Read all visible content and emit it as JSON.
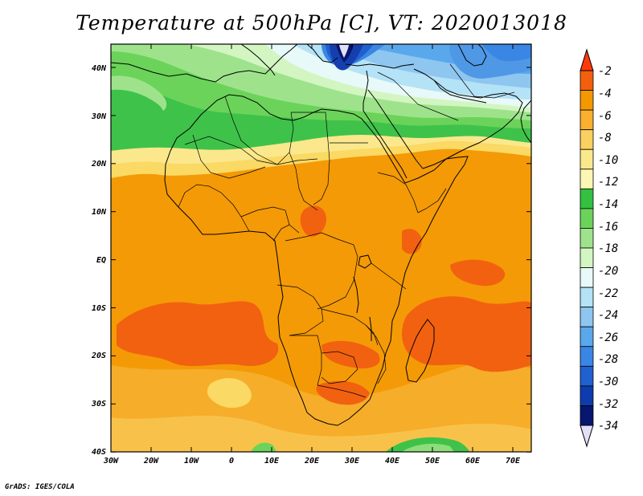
{
  "title": "Temperature at 500hPa [C], VT: 2020013018",
  "credit": "GrADS: IGES/COLA",
  "map": {
    "lat_labels": [
      "40N",
      "30N",
      "20N",
      "10N",
      "EQ",
      "10S",
      "20S",
      "30S",
      "40S"
    ],
    "lon_labels": [
      "30W",
      "20W",
      "10W",
      "0",
      "10E",
      "20E",
      "30E",
      "40E",
      "50E",
      "60E",
      "70E"
    ],
    "lat_range": [
      -40,
      45
    ],
    "lon_range": [
      -30,
      75
    ]
  },
  "colorbar": {
    "labels": [
      "-2",
      "-4",
      "-6",
      "-8",
      "-10",
      "-12",
      "-14",
      "-16",
      "-18",
      "-20",
      "-22",
      "-24",
      "-26",
      "-28",
      "-30",
      "-32",
      "-34"
    ],
    "colors": [
      "#ff3a0a",
      "#f2600e",
      "#f59800",
      "#f8b02e",
      "#fad060",
      "#fbe88c",
      "#fcf6b4",
      "#34c040",
      "#6bd35a",
      "#9ee38c",
      "#d3f5c2",
      "#e7f9f8",
      "#b4e2f6",
      "#8ec6f0",
      "#5aa8ec",
      "#3a86e4",
      "#2060cf",
      "#0e3cae",
      "#07166e",
      "#e2e0f8"
    ]
  },
  "colors": {
    "ocean_base": "#f49a06",
    "warm_core": "#f26110",
    "pale_yellow": "#fad964",
    "green": "#3fc24a",
    "light_green": "#8fdc7a",
    "blue": "#4f98e6",
    "deep_blue": "#153fae"
  }
}
